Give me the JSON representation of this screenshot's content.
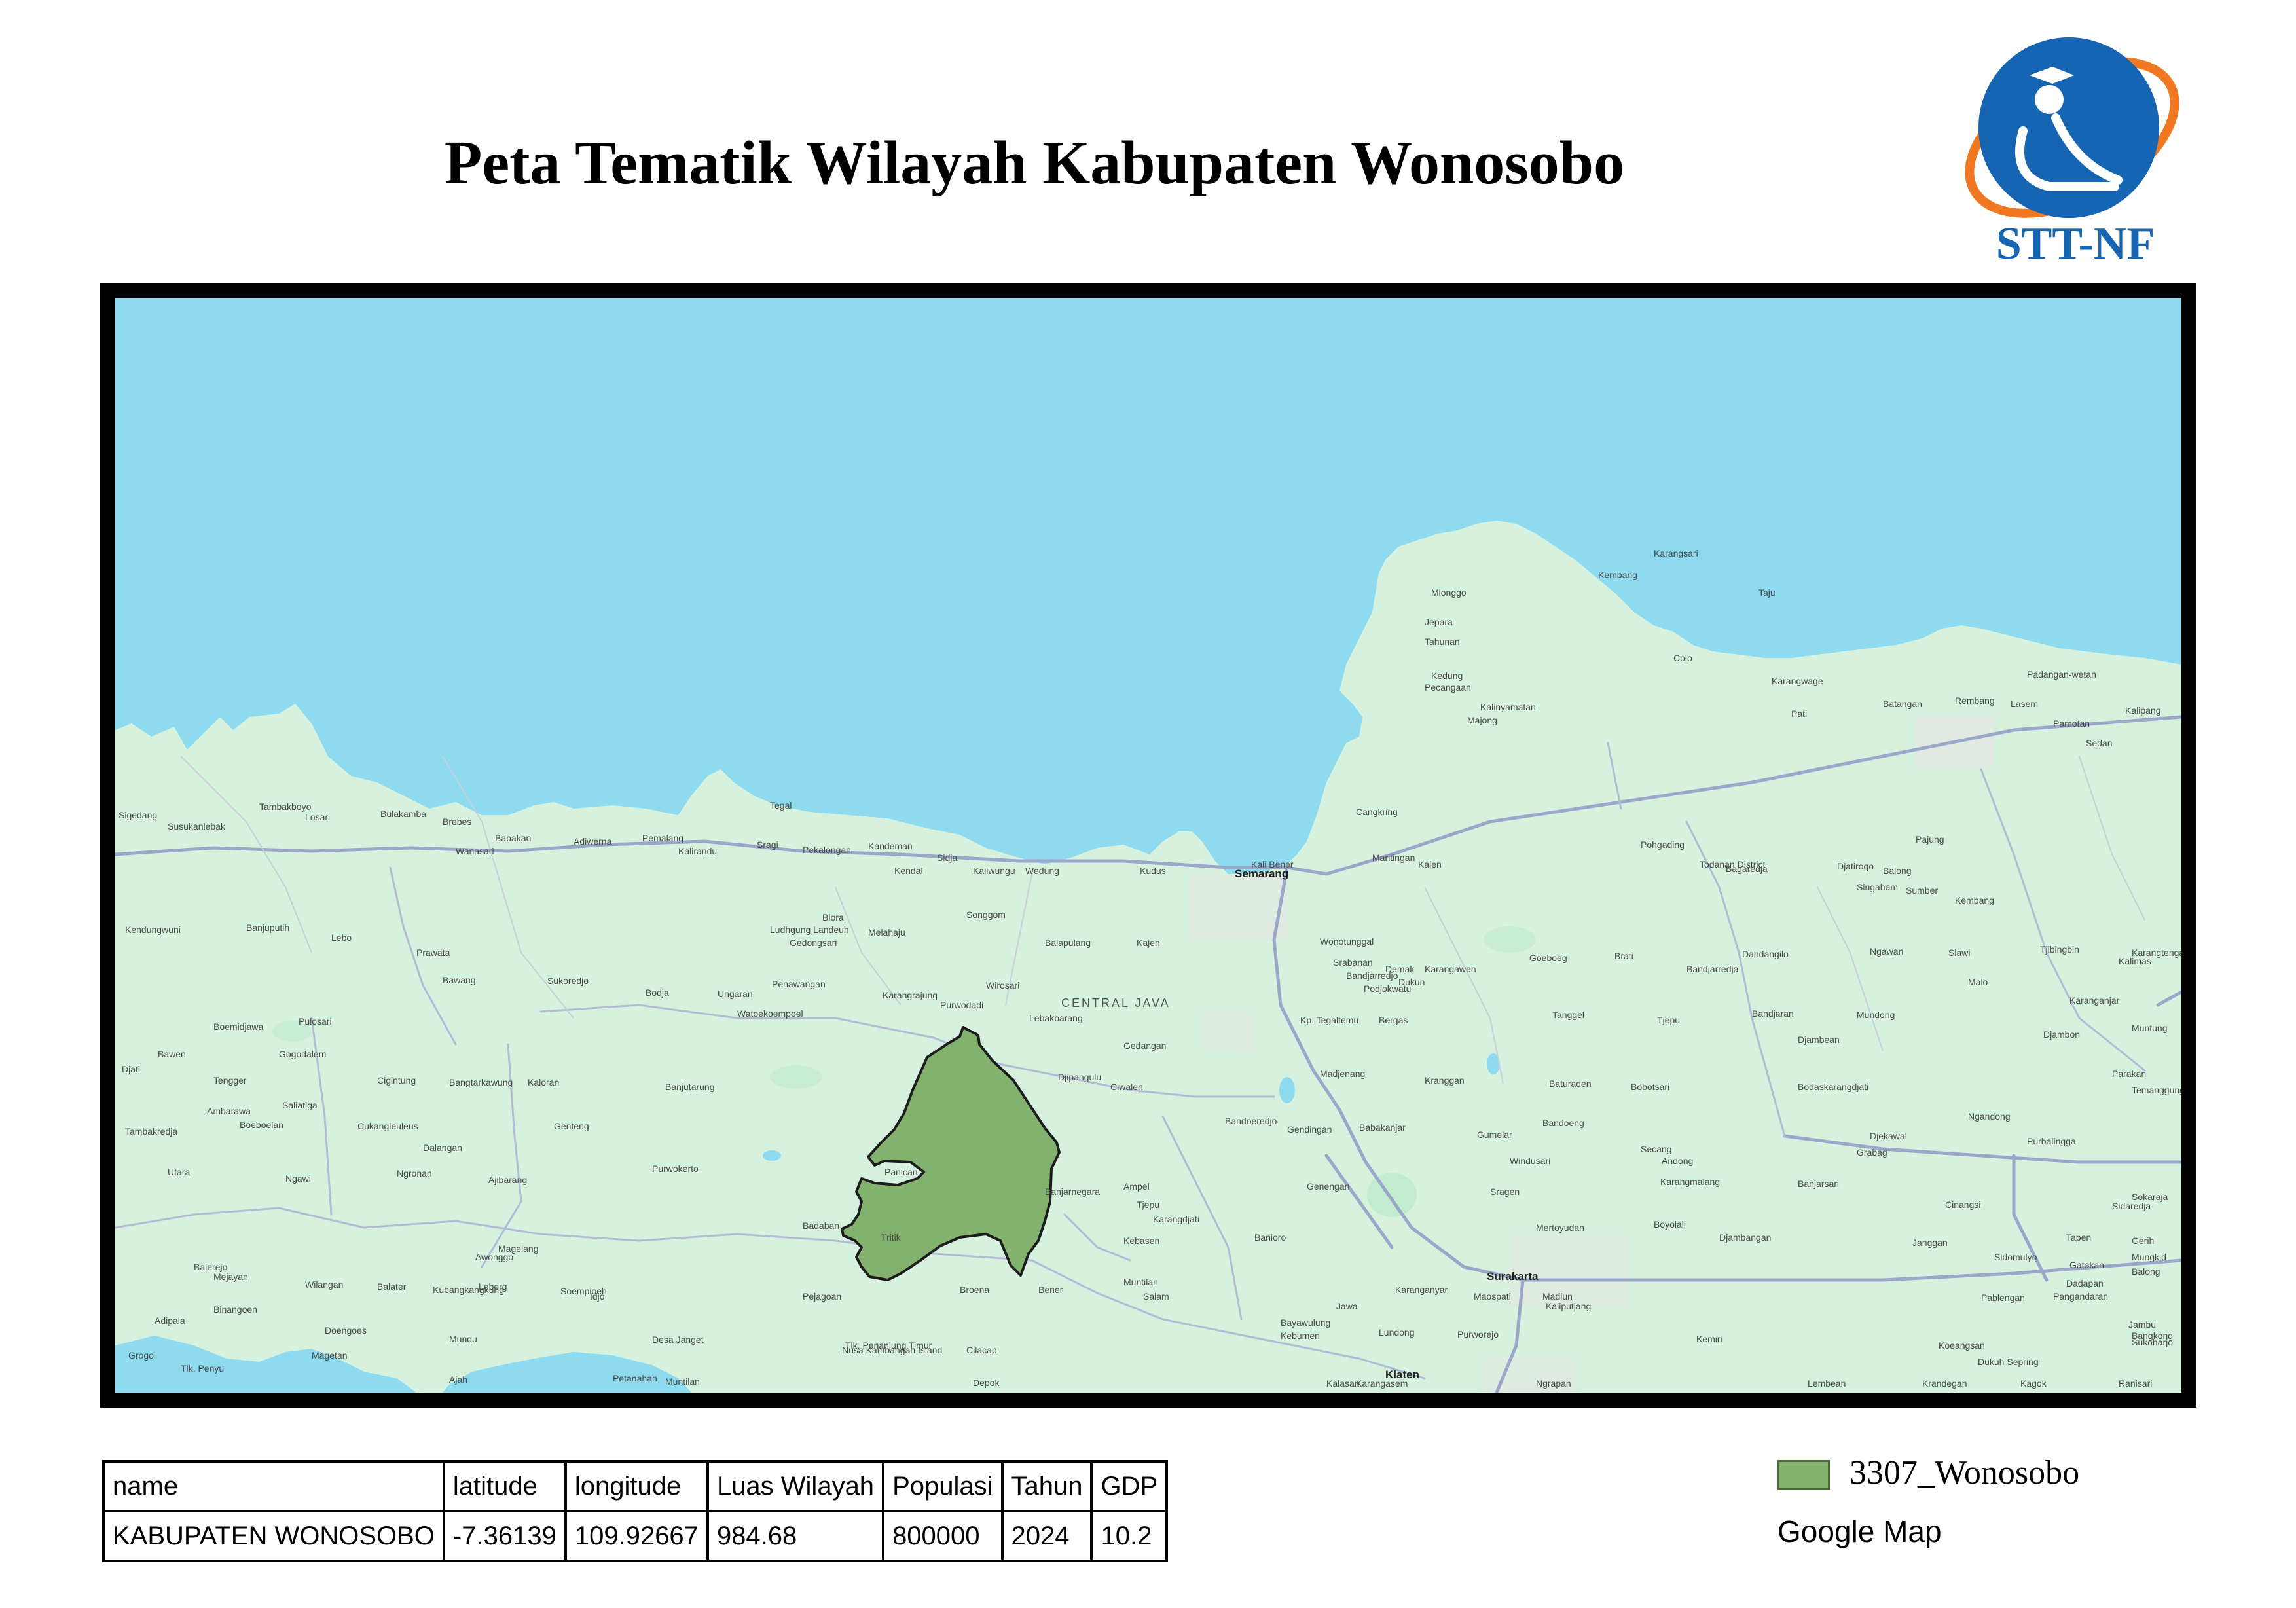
{
  "title": "Peta Tematik Wilayah Kabupaten Wonosobo",
  "logo": {
    "text": "STT-NF",
    "icon": "graduate-person-logo"
  },
  "map": {
    "colors": {
      "sea": "#8edaef",
      "land": "#d6f2df",
      "highlight": "#83b26f",
      "outline": "#1c1c1c"
    },
    "region_label": "CENTRAL JAVA",
    "major_cities": [
      "Semarang",
      "Surakarta",
      "Klaten"
    ],
    "places": [
      "Karangsari",
      "Kembang",
      "Mlonggo",
      "Jepara",
      "Tahunan",
      "Kedung",
      "Pecangaan",
      "Kalinyamatan",
      "Majong",
      "Colo",
      "Taju",
      "Karangwage",
      "Pati",
      "Batangan",
      "Rembang",
      "Lasem",
      "Padangan-wetan",
      "Pamotan",
      "Sedan",
      "Kalipang",
      "Tambakboyo",
      "Losari",
      "Bulakamba",
      "Brebes",
      "Tegal",
      "Sigedang",
      "Susukanlebak",
      "Babakan",
      "Wanasari",
      "Adiwerna",
      "Pemalang",
      "Kalirandu",
      "Sragi",
      "Pekalongan",
      "Kandeman",
      "Sidja",
      "Kendal",
      "Kaliwungu",
      "Wedung",
      "Kudus",
      "Kali Bener",
      "Cangkring",
      "Demak",
      "Dukun",
      "Balong",
      "Sumber",
      "Kembang",
      "Maritingan",
      "Kajen",
      "Pohgading",
      "Todanan District",
      "Bagaredja",
      "Djatirogo",
      "Singaham",
      "Slawi",
      "Pajung",
      "Kendungwuni",
      "Banjuputih",
      "Lebo",
      "Prawata",
      "Blora",
      "Gedongsari",
      "Ludhgung Landeuh",
      "Melahaju",
      "Songgom",
      "Balapulang",
      "Kajen",
      "Wonotunggal",
      "Srabanan",
      "Karangawen",
      "Goeboeg",
      "Brati",
      "Bandjarredja",
      "Dandangilo",
      "Ngawan",
      "Tjibingbin",
      "Kalimas",
      "Karangtengah",
      "Bawang",
      "Sukoredjo",
      "Bodja",
      "Ungaran",
      "Penawangan",
      "Karangrajung",
      "Purwodadi",
      "Wirosari",
      "Bandjarredjo",
      "Podjokwatu",
      "Malo",
      "Karanganjar",
      "Boemidjawa",
      "Pulosari",
      "Watoekoempoel",
      "Lebakbarang",
      "Kp. Tegaltemu",
      "Bergas",
      "Tanggel",
      "Tjepu",
      "Bandjaran",
      "Mundong",
      "Muntung",
      "Bawen",
      "Gogodalem",
      "Gedangan",
      "Djambean",
      "Djambon",
      "Djati",
      "Tengger",
      "Cigintung",
      "Bangtarkawung",
      "Kaloran",
      "Banjutarung",
      "Djipangulu",
      "Ciwalen",
      "Madjenang",
      "Kranggan",
      "Baturaden",
      "Bobotsari",
      "Bodaskarangdjati",
      "Parakan",
      "Temanggung",
      "Ambarawa",
      "Saliatiga",
      "Bandoeng",
      "Ngandong",
      "Djekawal",
      "Tambakredja",
      "Boeboelan",
      "Cukangleuleus",
      "Genteng",
      "Bandoeredjo",
      "Gendingan",
      "Babakanjar",
      "Gumelar",
      "Purbalingga",
      "Grabag",
      "Dalangan",
      "Windusari",
      "Secang",
      "Andong",
      "Utara",
      "Ngawi",
      "Ngronan",
      "Ajibarang",
      "Purwokerto",
      "Panican",
      "Banjarnegara",
      "Ampel",
      "Genengan",
      "Sragen",
      "Karangmalang",
      "Banjarsari",
      "Cinangsi",
      "Sidaredja",
      "Sokaraja",
      "Awonggo",
      "Magelang",
      "Badaban",
      "Tjepu",
      "Karangdjati",
      "Tritik",
      "Kebasen",
      "Banioro",
      "Mertoyudan",
      "Boyolali",
      "Djambangan",
      "Janggan",
      "Sidomulyo",
      "Tapen",
      "Gerih",
      "Mungkid",
      "Gatakan",
      "Balong",
      "Dadapan",
      "Balerejo",
      "Mejayan",
      "Wilangan",
      "Balater",
      "Kubangkangkung",
      "Leberg",
      "Soempioeh",
      "Idjo",
      "Pejagoan",
      "Broena",
      "Bener",
      "Muntilan",
      "Salam",
      "Jawa",
      "Karanganyar",
      "Maospati",
      "Madiun",
      "Kaliputjang",
      "Pablengan",
      "Pangandaran",
      "Adipala",
      "Binangoen",
      "Bayawulung",
      "Kebumen",
      "Kemiri",
      "Jambu",
      "Bangkong",
      "Grogol",
      "Magetan",
      "Doengoes",
      "Mundu",
      "Desa Janget",
      "Nusa Kambangan Island",
      "Cilacap",
      "Lundong",
      "Purworejo",
      "Sukoharjo",
      "Koeangsan",
      "Dukuh Sepring",
      "Tlk. Penanjung Timur",
      "Tlk. Penyu",
      "Ajah",
      "Petanahan",
      "Muntilan",
      "Depok",
      "Kalasan",
      "Karangasem",
      "Ngrapah",
      "Lembean",
      "Krandegan",
      "Kagok",
      "Ranisari"
    ],
    "base_map_source": "Google Map"
  },
  "table": {
    "headers": [
      "name",
      "latitude",
      "longitude",
      "Luas Wilayah",
      "Populasi",
      "Tahun",
      "GDP"
    ],
    "rows": [
      [
        "KABUPATEN WONOSOBO",
        "-7.36139",
        "109.92667",
        "984.68",
        "800000",
        "2024",
        "10.2"
      ]
    ]
  },
  "legend": {
    "layer_label": "3307_Wonosobo",
    "basemap_label": "Google Map"
  }
}
